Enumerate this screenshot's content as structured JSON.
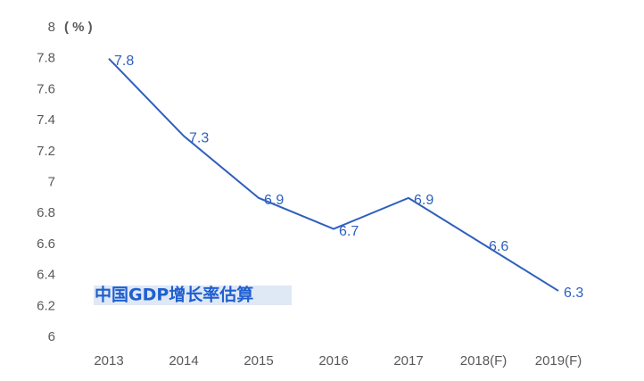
{
  "chart_data": {
    "type": "line",
    "unit_label": "( % )",
    "annotation": "中国GDP增长率估算",
    "categories": [
      "2013",
      "2014",
      "2015",
      "2016",
      "2017",
      "2018(F)",
      "2019(F)"
    ],
    "series": [
      {
        "name": "GDP",
        "color": "#2e5fbe",
        "values": [
          7.8,
          7.3,
          6.9,
          6.7,
          6.9,
          6.6,
          6.3
        ]
      }
    ],
    "ylim": [
      6,
      8
    ],
    "yticks": [
      6,
      6.2,
      6.4,
      6.6,
      6.8,
      7,
      7.2,
      7.4,
      7.6,
      7.8,
      8
    ],
    "grid": false
  }
}
